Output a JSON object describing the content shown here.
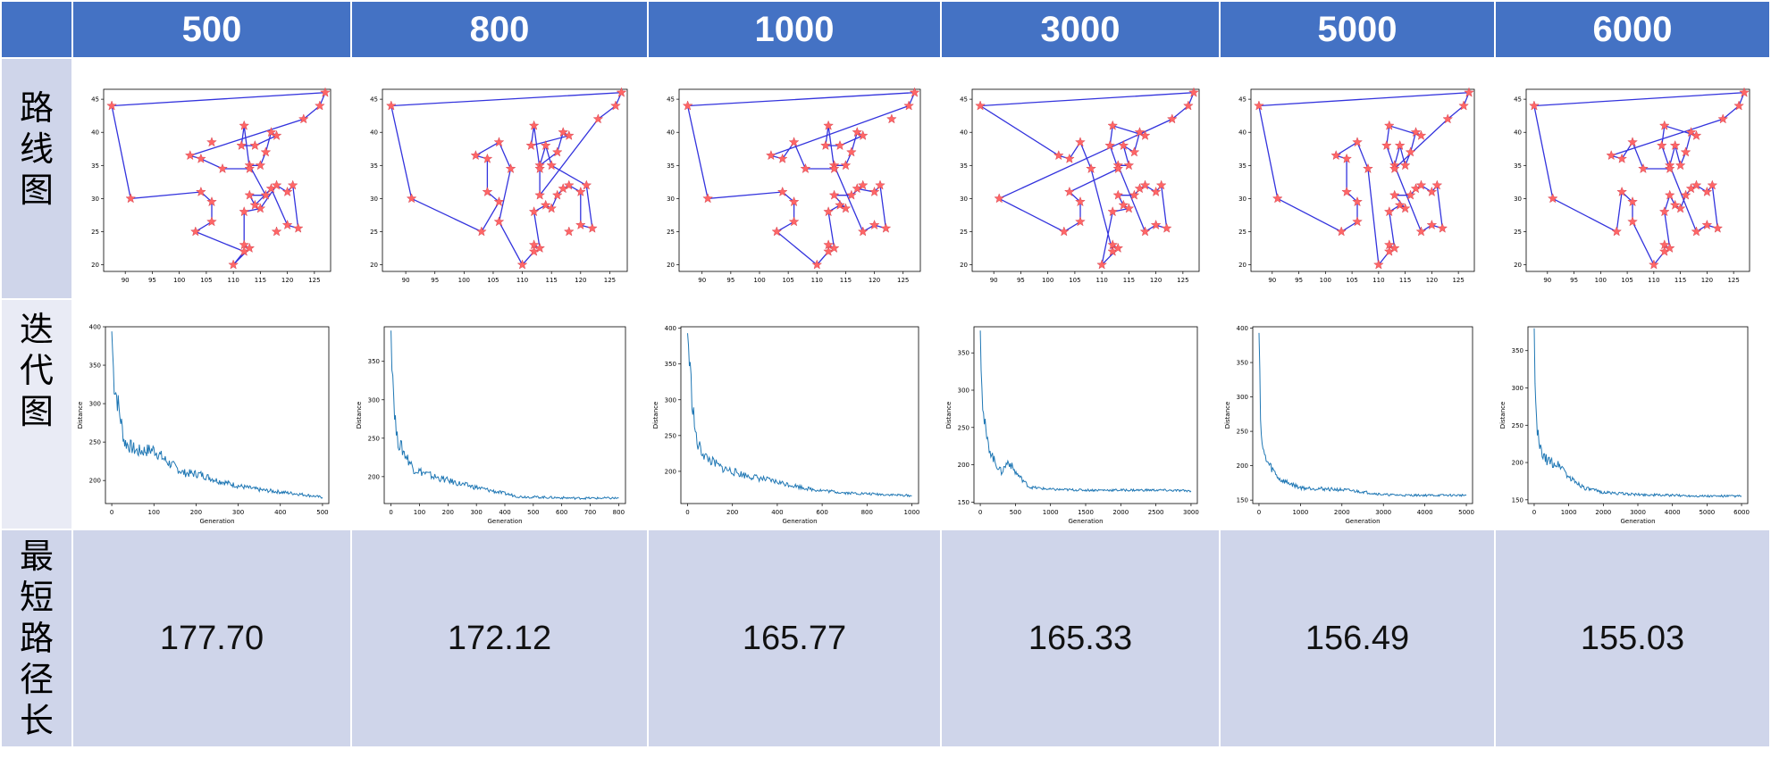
{
  "colors": {
    "header": "#4472C4",
    "row_dark": "#CFD5EA",
    "row_light": "#E9EBF5",
    "route_line": "#3333DD",
    "route_marker": "#FF6666",
    "curve": "#1F77B4"
  },
  "headers": [
    "500",
    "800",
    "1000",
    "3000",
    "5000",
    "6000"
  ],
  "row_labels": {
    "route": [
      "路",
      "线",
      "图"
    ],
    "iteration": [
      "迭",
      "代",
      "图"
    ],
    "shortest": [
      "最",
      "短",
      "路",
      "径",
      "长"
    ]
  },
  "shortest_lengths": [
    "177.70",
    "172.12",
    "165.77",
    "165.33",
    "156.49",
    "155.03"
  ],
  "chart_data": [
    {
      "type": "line",
      "name": "route plots",
      "xlim": [
        86,
        128
      ],
      "ylim": [
        19,
        46.5
      ],
      "xticks": [
        90,
        95,
        100,
        105,
        110,
        115,
        120,
        125
      ],
      "yticks": [
        20,
        25,
        30,
        35,
        40,
        45
      ],
      "cities": [
        [
          87.5,
          44
        ],
        [
          91,
          30
        ],
        [
          102,
          36.5
        ],
        [
          104,
          36
        ],
        [
          106,
          38.5
        ],
        [
          103,
          25
        ],
        [
          106,
          26.5
        ],
        [
          106,
          29.5
        ],
        [
          104,
          31
        ],
        [
          108,
          34.5
        ],
        [
          110,
          20
        ],
        [
          112,
          22
        ],
        [
          112,
          23
        ],
        [
          113,
          22.5
        ],
        [
          112,
          28
        ],
        [
          113,
          30.5
        ],
        [
          114,
          29
        ],
        [
          115,
          28.5
        ],
        [
          116,
          30.5
        ],
        [
          117,
          31.5
        ],
        [
          118,
          32
        ],
        [
          120,
          31
        ],
        [
          121,
          32
        ],
        [
          122,
          25.5
        ],
        [
          120,
          26
        ],
        [
          118,
          25
        ],
        [
          113,
          35
        ],
        [
          114,
          38
        ],
        [
          115,
          35
        ],
        [
          116,
          37
        ],
        [
          117,
          40
        ],
        [
          118,
          39.5
        ],
        [
          112,
          41
        ],
        [
          111.5,
          38
        ],
        [
          113,
          34.5
        ],
        [
          123,
          42
        ],
        [
          126,
          44
        ],
        [
          127,
          46
        ]
      ],
      "routes": [
        [
          0,
          1,
          8,
          7,
          6,
          5,
          11,
          10,
          13,
          12,
          14,
          17,
          20,
          21,
          22,
          23,
          24,
          19,
          16,
          15,
          18,
          26,
          28,
          29,
          30,
          31,
          27,
          33,
          32,
          34,
          9,
          3,
          2,
          35,
          36,
          37,
          0
        ],
        [
          0,
          1,
          5,
          7,
          8,
          3,
          2,
          4,
          9,
          6,
          10,
          11,
          12,
          13,
          14,
          16,
          17,
          18,
          19,
          20,
          21,
          24,
          23,
          22,
          28,
          27,
          26,
          29,
          30,
          31,
          33,
          32,
          34,
          15,
          35,
          36,
          37,
          0
        ],
        [
          0,
          1,
          8,
          7,
          6,
          5,
          10,
          11,
          12,
          13,
          14,
          16,
          17,
          15,
          18,
          20,
          19,
          21,
          22,
          23,
          24,
          25,
          26,
          28,
          29,
          30,
          31,
          27,
          33,
          32,
          34,
          9,
          4,
          3,
          2,
          36,
          37,
          0
        ],
        [
          0,
          2,
          3,
          4,
          9,
          11,
          12,
          13,
          10,
          14,
          17,
          16,
          15,
          18,
          19,
          20,
          21,
          22,
          23,
          24,
          25,
          26,
          28,
          27,
          29,
          30,
          31,
          32,
          33,
          34,
          8,
          7,
          6,
          5,
          1,
          35,
          36,
          37,
          0
        ],
        [
          0,
          1,
          5,
          6,
          7,
          8,
          3,
          2,
          4,
          9,
          10,
          11,
          12,
          13,
          14,
          16,
          17,
          15,
          18,
          19,
          20,
          21,
          22,
          23,
          24,
          25,
          26,
          27,
          28,
          29,
          30,
          31,
          32,
          33,
          34,
          35,
          36,
          37,
          0
        ],
        [
          0,
          1,
          5,
          8,
          7,
          6,
          10,
          11,
          12,
          13,
          14,
          15,
          16,
          17,
          18,
          19,
          20,
          21,
          22,
          23,
          24,
          25,
          26,
          27,
          28,
          29,
          30,
          31,
          32,
          33,
          34,
          9,
          4,
          3,
          2,
          35,
          36,
          37,
          0
        ]
      ]
    },
    {
      "type": "line",
      "name": "iteration curves",
      "xlabel": "Generation",
      "ylabel": "Distance",
      "series": [
        {
          "generations": 500,
          "ylim": [
            170,
            400
          ],
          "yticks": [
            200,
            250,
            300,
            350,
            400
          ],
          "xticks": [
            0,
            100,
            200,
            300,
            400,
            500
          ],
          "start": 394,
          "final": 177.7,
          "points": [
            [
              0,
              394
            ],
            [
              5,
              330
            ],
            [
              15,
              300
            ],
            [
              30,
              250
            ],
            [
              60,
              238
            ],
            [
              100,
              240
            ],
            [
              130,
              225
            ],
            [
              170,
              210
            ],
            [
              210,
              208
            ],
            [
              250,
              200
            ],
            [
              300,
              193
            ],
            [
              350,
              188
            ],
            [
              400,
              185
            ],
            [
              450,
              182
            ],
            [
              500,
              178
            ]
          ]
        },
        {
          "generations": 800,
          "ylim": [
            165,
            395
          ],
          "yticks": [
            200,
            250,
            300,
            350
          ],
          "xticks": [
            0,
            100,
            200,
            300,
            400,
            500,
            600,
            700,
            800
          ],
          "start": 390,
          "final": 172.12,
          "points": [
            [
              0,
              390
            ],
            [
              10,
              300
            ],
            [
              20,
              250
            ],
            [
              40,
              235
            ],
            [
              80,
              210
            ],
            [
              150,
              200
            ],
            [
              250,
              190
            ],
            [
              350,
              182
            ],
            [
              450,
              174
            ],
            [
              550,
              173
            ],
            [
              650,
              172
            ],
            [
              750,
              172
            ],
            [
              800,
              172
            ]
          ]
        },
        {
          "generations": 1000,
          "ylim": [
            155,
            402
          ],
          "yticks": [
            200,
            250,
            300,
            350,
            400
          ],
          "xticks": [
            0,
            200,
            400,
            600,
            800,
            1000
          ],
          "start": 393,
          "final": 165.77,
          "points": [
            [
              0,
              393
            ],
            [
              20,
              300
            ],
            [
              40,
              240
            ],
            [
              80,
              220
            ],
            [
              150,
              205
            ],
            [
              250,
              195
            ],
            [
              400,
              185
            ],
            [
              550,
              175
            ],
            [
              700,
              170
            ],
            [
              850,
              168
            ],
            [
              1000,
              166
            ]
          ]
        },
        {
          "generations": 3000,
          "ylim": [
            148,
            385
          ],
          "yticks": [
            150,
            200,
            250,
            300,
            350
          ],
          "xticks": [
            0,
            500,
            1000,
            1500,
            2000,
            2500,
            3000
          ],
          "start": 380,
          "final": 165.33,
          "points": [
            [
              0,
              380
            ],
            [
              40,
              270
            ],
            [
              100,
              230
            ],
            [
              200,
              205
            ],
            [
              300,
              190
            ],
            [
              400,
              205
            ],
            [
              500,
              190
            ],
            [
              700,
              170
            ],
            [
              1000,
              167
            ],
            [
              1500,
              166
            ],
            [
              2000,
              166
            ],
            [
              2500,
              166
            ],
            [
              3000,
              165
            ]
          ]
        },
        {
          "generations": 5000,
          "ylim": [
            145,
            402
          ],
          "yticks": [
            150,
            200,
            250,
            300,
            350,
            400
          ],
          "xticks": [
            0,
            1000,
            2000,
            3000,
            4000,
            5000
          ],
          "start": 393,
          "final": 156.49,
          "points": [
            [
              0,
              393
            ],
            [
              50,
              250
            ],
            [
              100,
              220
            ],
            [
              200,
              205
            ],
            [
              500,
              180
            ],
            [
              1000,
              168
            ],
            [
              2000,
              165
            ],
            [
              2500,
              162
            ],
            [
              3000,
              158
            ],
            [
              3500,
              157
            ],
            [
              4000,
              157
            ],
            [
              5000,
              157
            ]
          ]
        },
        {
          "generations": 6000,
          "ylim": [
            145,
            382
          ],
          "yticks": [
            150,
            200,
            250,
            300,
            350
          ],
          "xticks": [
            0,
            1000,
            2000,
            3000,
            4000,
            5000,
            6000
          ],
          "start": 380,
          "final": 155.03,
          "points": [
            [
              0,
              380
            ],
            [
              50,
              260
            ],
            [
              150,
              220
            ],
            [
              300,
              205
            ],
            [
              500,
              200
            ],
            [
              800,
              195
            ],
            [
              1000,
              180
            ],
            [
              1500,
              165
            ],
            [
              2000,
              160
            ],
            [
              3000,
              157
            ],
            [
              4000,
              156
            ],
            [
              5000,
              155
            ],
            [
              6000,
              155
            ]
          ]
        }
      ]
    }
  ]
}
